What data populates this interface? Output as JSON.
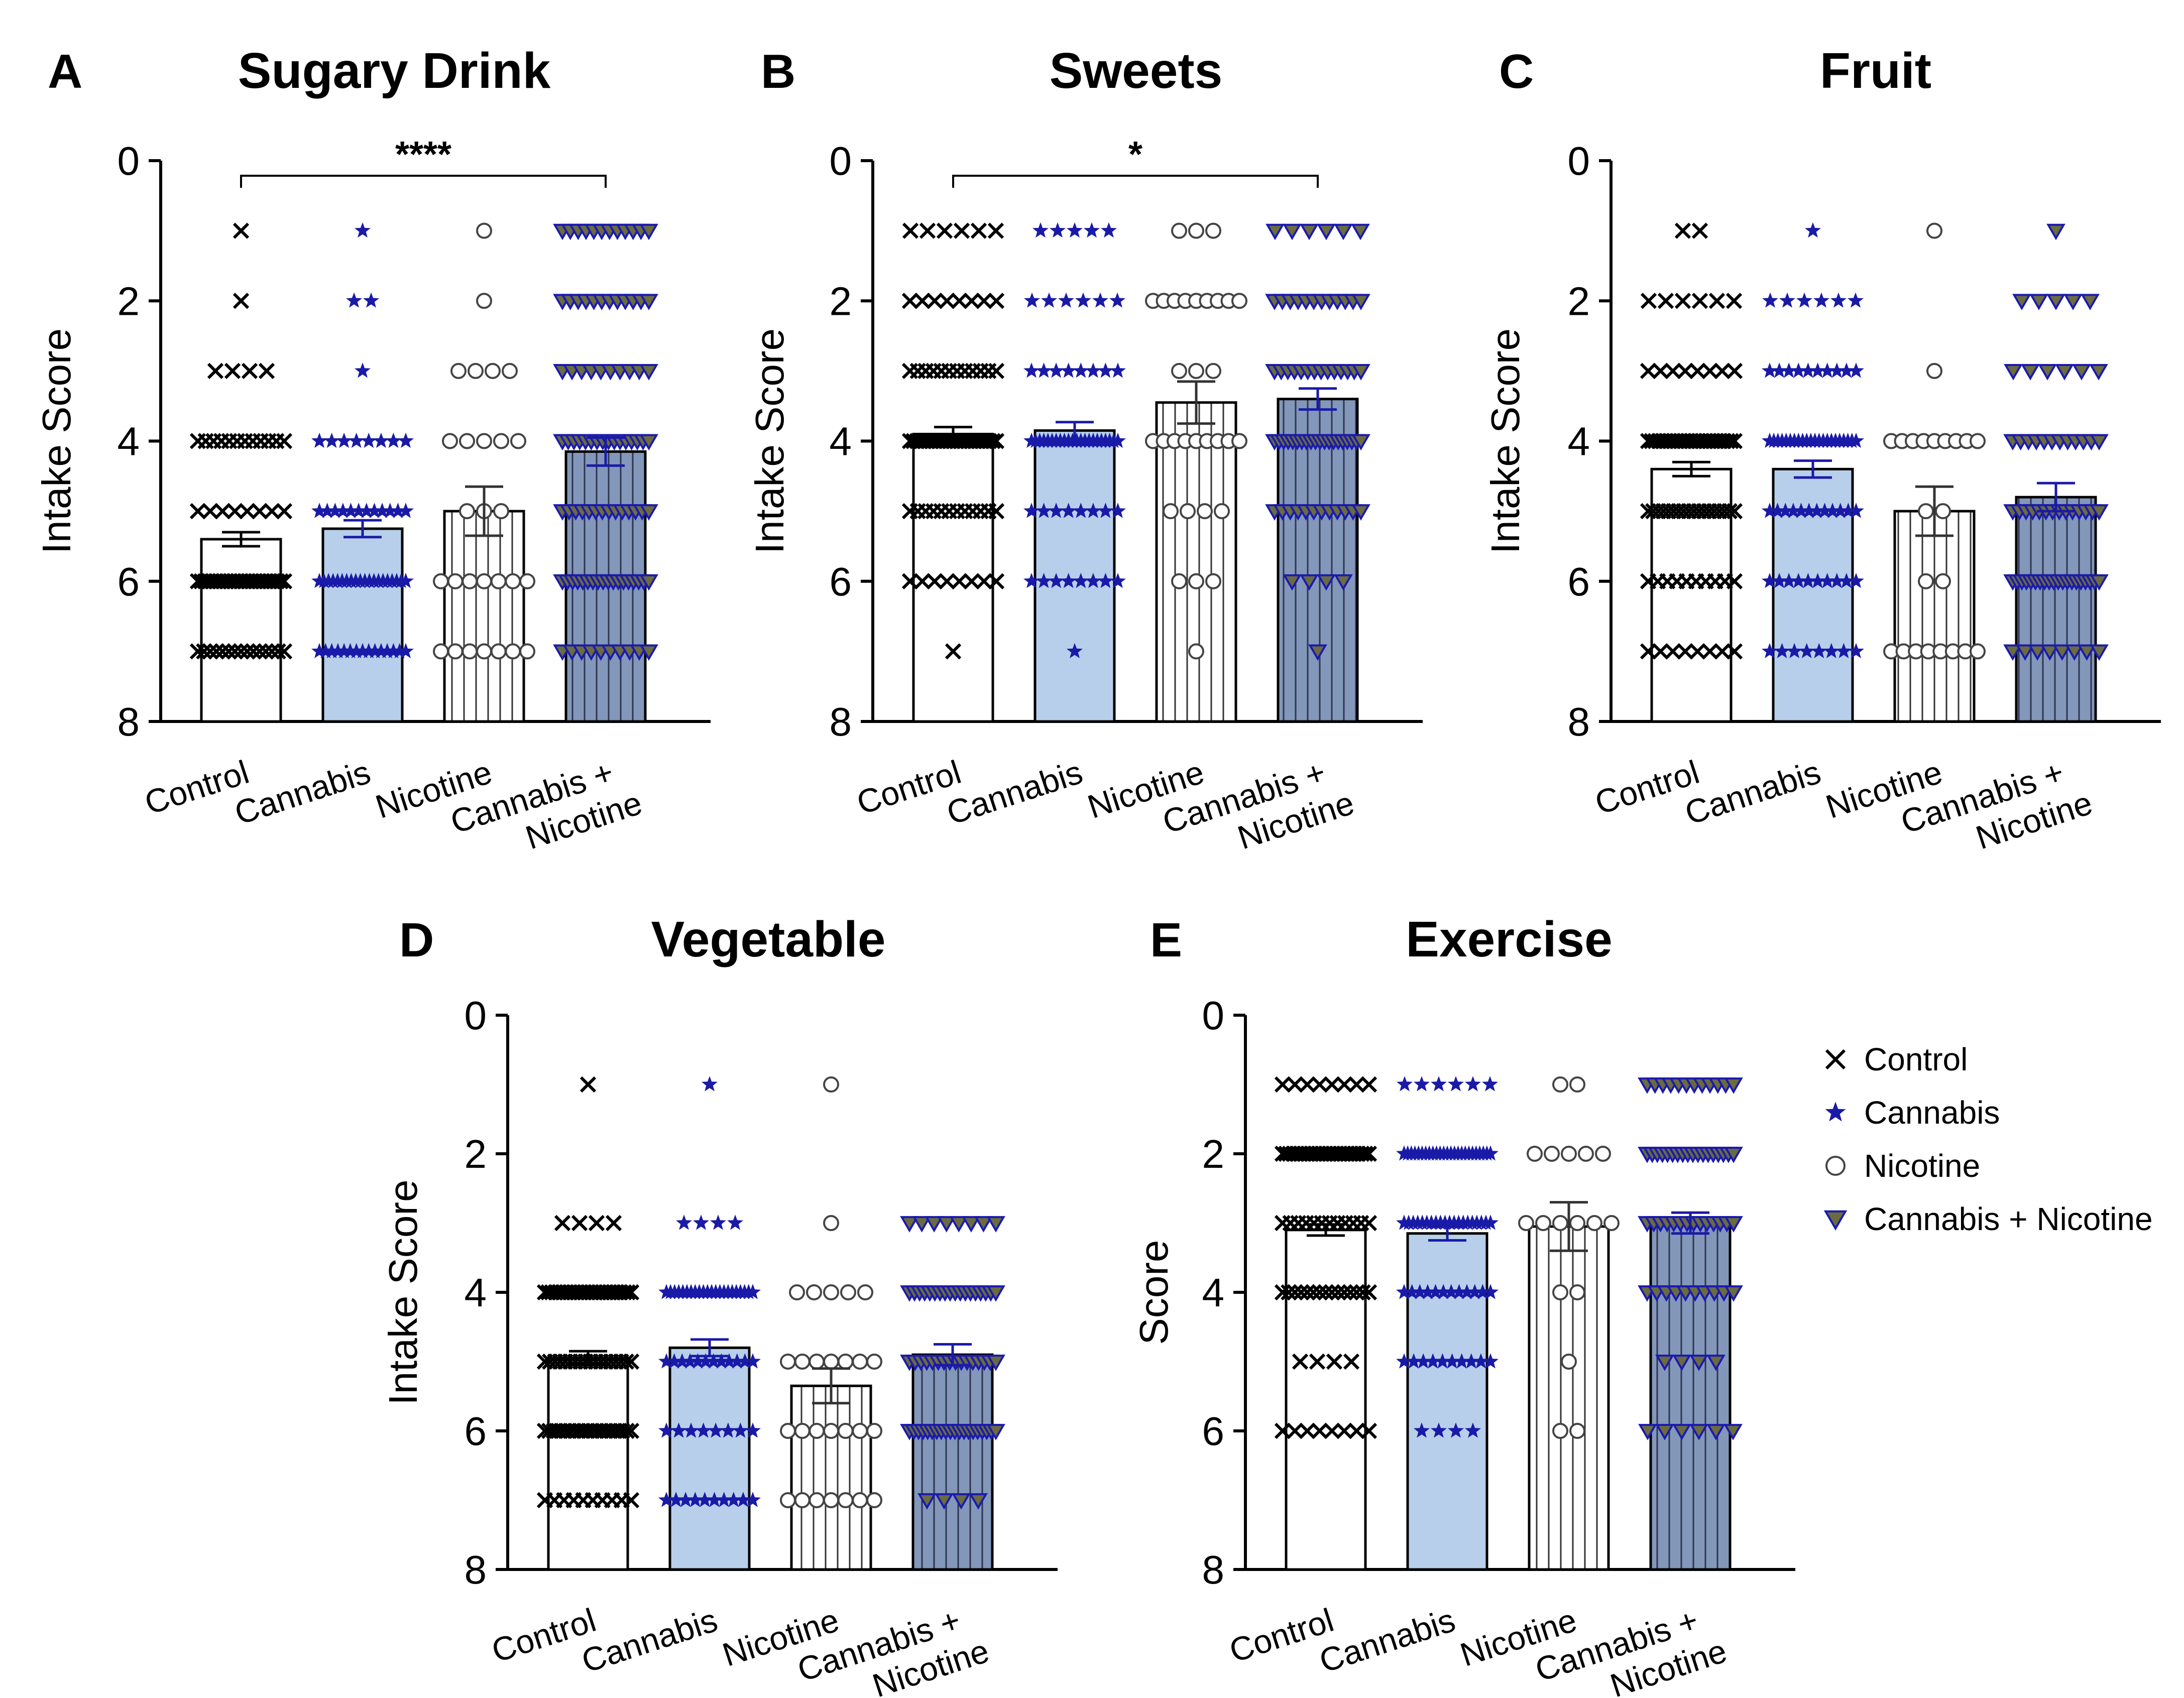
{
  "colors": {
    "control_fill": "#ffffff",
    "cannabis_fill": "#b7cfea",
    "nicotine_fill": "#ffffff",
    "combo_fill": "#8397ba",
    "marker_control": "#000000",
    "marker_cannabis": "#1a1aa8",
    "marker_nicotine": "#444444",
    "marker_combo_fill": "#6b6b3f",
    "marker_combo_stroke": "#1a1ab0",
    "axis": "#000000"
  },
  "legend": {
    "items": [
      {
        "label": "Control",
        "icon": "x-marker-icon"
      },
      {
        "label": "Cannabis",
        "icon": "star-marker-icon"
      },
      {
        "label": "Nicotine",
        "icon": "circle-marker-icon"
      },
      {
        "label": "Cannabis + Nicotine",
        "icon": "triangle-marker-icon"
      }
    ]
  },
  "chart_data": [
    {
      "letter": "A",
      "title": "Sugary Drink",
      "type": "bar",
      "ylabel": "Intake Score",
      "ylim": [
        0,
        8
      ],
      "y_inverted": true,
      "yticks": [
        "0",
        "2",
        "4",
        "6",
        "8"
      ],
      "categories": [
        [
          "Control"
        ],
        [
          "Cannabis"
        ],
        [
          "Nicotine"
        ],
        [
          "Cannabis +",
          "Nicotine"
        ]
      ],
      "means": [
        5.4,
        5.25,
        5.0,
        4.15
      ],
      "sem": [
        0.1,
        0.12,
        0.35,
        0.2
      ],
      "points": [
        {
          "1": 1,
          "2": 1,
          "3": 4,
          "4": 12,
          "5": 8,
          "6": 25,
          "7": 15
        },
        {
          "1": 1,
          "2": 2,
          "3": 1,
          "4": 8,
          "5": 12,
          "6": 20,
          "7": 15
        },
        {
          "1": 1,
          "2": 1,
          "3": 4,
          "4": 5,
          "5": 3,
          "6": 7,
          "7": 7
        },
        {
          "1": 12,
          "2": 12,
          "3": 10,
          "4": 16,
          "5": 14,
          "6": 18,
          "7": 10
        }
      ],
      "significance": {
        "from": 0,
        "to": 3,
        "label": "****"
      }
    },
    {
      "letter": "B",
      "title": "Sweets",
      "type": "bar",
      "ylabel": "Intake Score",
      "ylim": [
        0,
        8
      ],
      "y_inverted": true,
      "yticks": [
        "0",
        "2",
        "4",
        "6",
        "8"
      ],
      "categories": [
        [
          "Control"
        ],
        [
          "Cannabis"
        ],
        [
          "Nicotine"
        ],
        [
          "Cannabis +",
          "Nicotine"
        ]
      ],
      "means": [
        3.9,
        3.85,
        3.45,
        3.4
      ],
      "sem": [
        0.1,
        0.12,
        0.3,
        0.15
      ],
      "points": [
        {
          "1": 6,
          "2": 8,
          "3": 12,
          "4": 25,
          "5": 12,
          "6": 8,
          "7": 1
        },
        {
          "1": 5,
          "2": 6,
          "3": 8,
          "4": 22,
          "5": 8,
          "6": 8,
          "7": 1
        },
        {
          "1": 3,
          "2": 9,
          "3": 3,
          "4": 9,
          "5": 4,
          "6": 3,
          "7": 1
        },
        {
          "1": 6,
          "2": 12,
          "3": 14,
          "4": 20,
          "5": 12,
          "6": 4,
          "7": 1
        }
      ],
      "significance": {
        "from": 0,
        "to": 3,
        "label": "*"
      }
    },
    {
      "letter": "C",
      "title": "Fruit",
      "type": "bar",
      "ylabel": "Intake Score",
      "ylim": [
        0,
        8
      ],
      "y_inverted": true,
      "yticks": [
        "0",
        "2",
        "4",
        "6",
        "8"
      ],
      "categories": [
        [
          "Control"
        ],
        [
          "Cannabis"
        ],
        [
          "Nicotine"
        ],
        [
          "Cannabis +",
          "Nicotine"
        ]
      ],
      "means": [
        4.4,
        4.4,
        5.0,
        4.8
      ],
      "sem": [
        0.1,
        0.12,
        0.35,
        0.2
      ],
      "points": [
        {
          "1": 2,
          "2": 6,
          "3": 8,
          "4": 25,
          "5": 18,
          "6": 10,
          "7": 8
        },
        {
          "1": 1,
          "2": 6,
          "3": 10,
          "4": 22,
          "5": 12,
          "6": 10,
          "7": 8
        },
        {
          "1": 1,
          "3": 1,
          "4": 9,
          "5": 2,
          "6": 2,
          "7": 8
        },
        {
          "1": 1,
          "2": 5,
          "3": 6,
          "4": 12,
          "5": 14,
          "6": 20,
          "7": 8
        }
      ],
      "significance": null
    },
    {
      "letter": "D",
      "title": "Vegetable",
      "type": "bar",
      "ylabel": "Intake Score",
      "ylim": [
        0,
        8
      ],
      "y_inverted": true,
      "yticks": [
        "0",
        "2",
        "4",
        "6",
        "8"
      ],
      "categories": [
        [
          "Control"
        ],
        [
          "Cannabis"
        ],
        [
          "Nicotine"
        ],
        [
          "Cannabis +",
          "Nicotine"
        ]
      ],
      "means": [
        4.95,
        4.8,
        5.35,
        4.9
      ],
      "sem": [
        0.1,
        0.12,
        0.25,
        0.15
      ],
      "points": [
        {
          "1": 1,
          "3": 4,
          "4": 25,
          "5": 18,
          "6": 20,
          "7": 10
        },
        {
          "1": 1,
          "3": 4,
          "4": 22,
          "5": 12,
          "6": 8,
          "7": 10
        },
        {
          "1": 1,
          "3": 1,
          "4": 5,
          "5": 7,
          "6": 7,
          "7": 7
        },
        {
          "3": 8,
          "4": 18,
          "5": 16,
          "6": 20,
          "7": 4
        }
      ],
      "significance": null
    },
    {
      "letter": "E",
      "title": "Exercise",
      "type": "bar",
      "ylabel": "Score",
      "ylim": [
        0,
        8
      ],
      "y_inverted": true,
      "yticks": [
        "0",
        "2",
        "4",
        "6",
        "8"
      ],
      "categories": [
        [
          "Control"
        ],
        [
          "Cannabis"
        ],
        [
          "Nicotine"
        ],
        [
          "Cannabis +",
          "Nicotine"
        ]
      ],
      "means": [
        3.1,
        3.15,
        3.05,
        3.0
      ],
      "sem": [
        0.08,
        0.1,
        0.35,
        0.15
      ],
      "points": [
        {
          "1": 8,
          "2": 25,
          "3": 12,
          "4": 15,
          "5": 4,
          "6": 8
        },
        {
          "1": 6,
          "2": 25,
          "3": 20,
          "4": 12,
          "5": 10,
          "6": 4
        },
        {
          "1": 2,
          "2": 5,
          "3": 6,
          "4": 2,
          "5": 1,
          "6": 2
        },
        {
          "1": 12,
          "2": 18,
          "3": 14,
          "4": 10,
          "5": 4,
          "6": 6
        }
      ],
      "significance": null
    }
  ]
}
